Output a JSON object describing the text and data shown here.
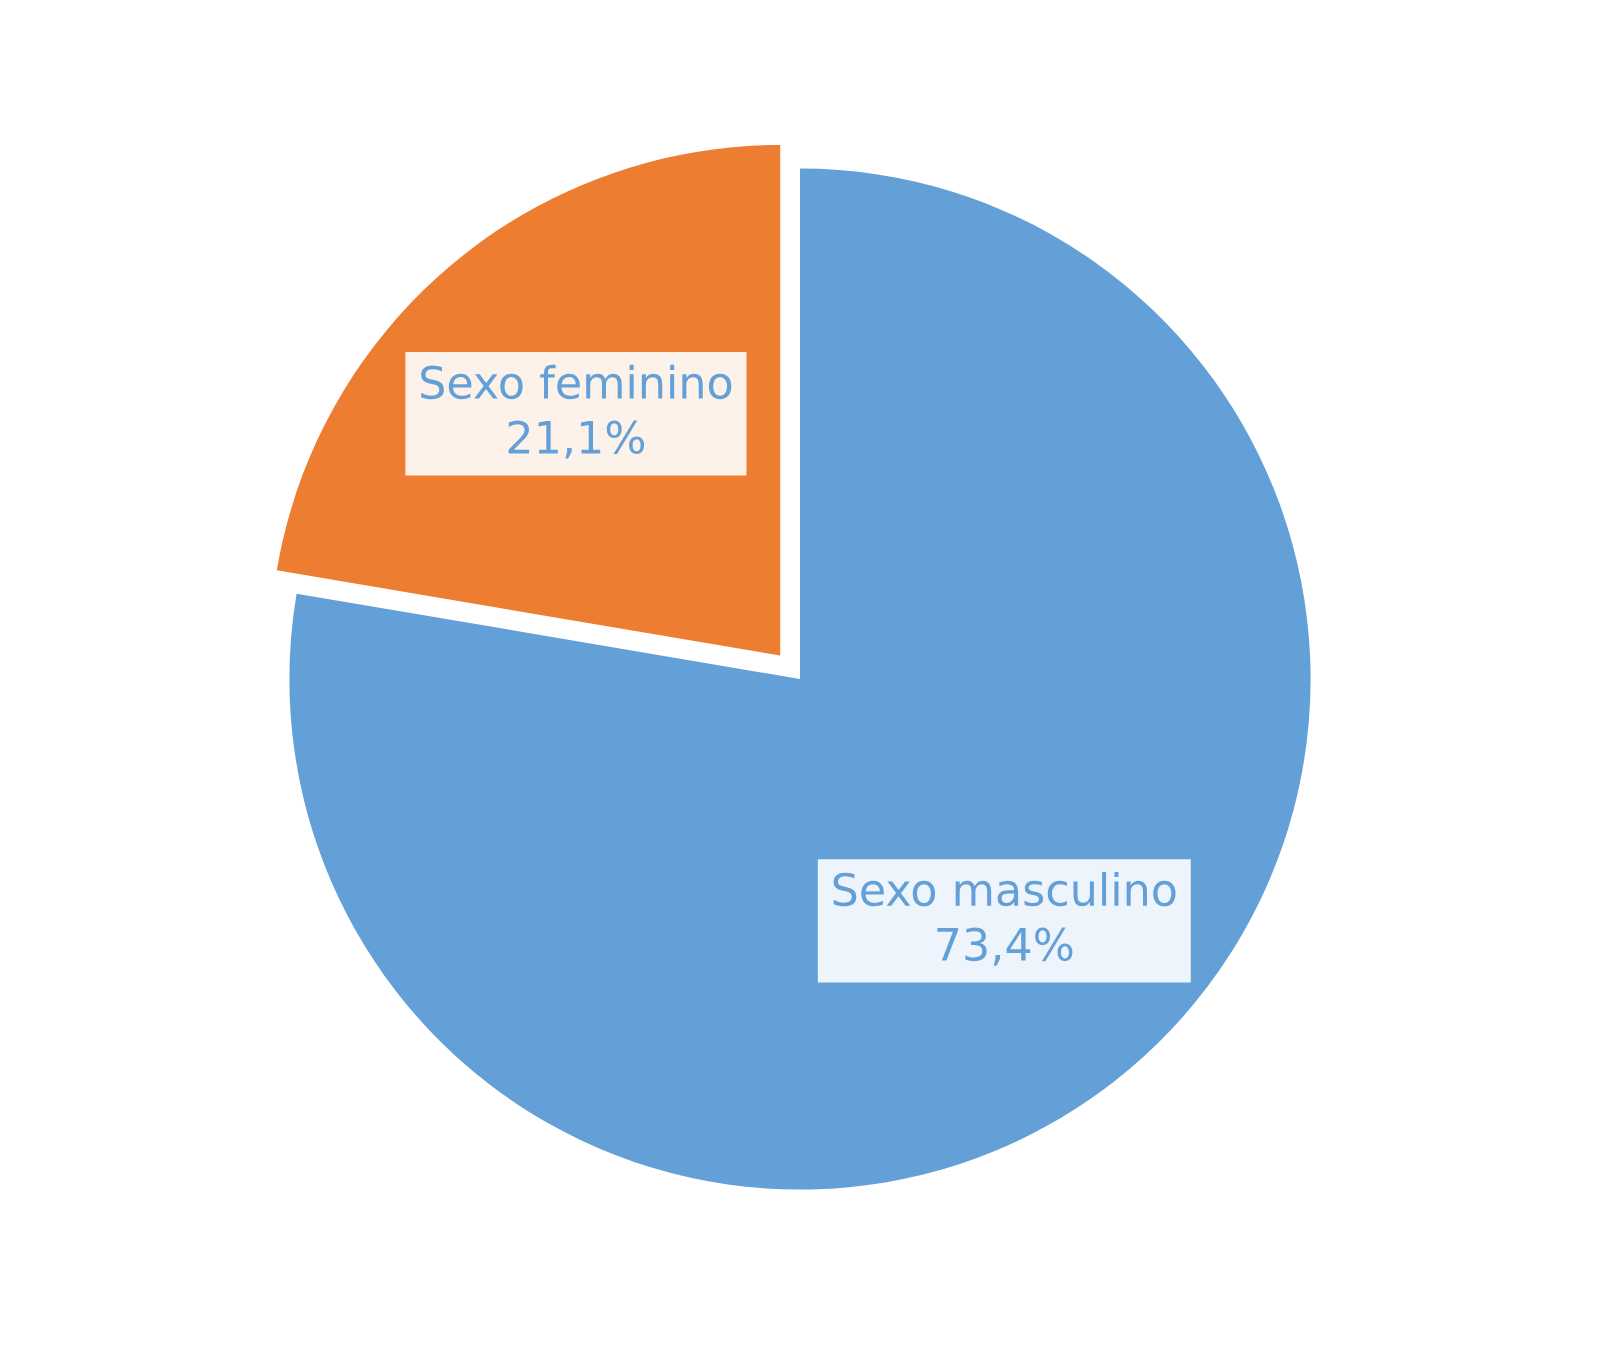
{
  "chart_data": {
    "type": "pie",
    "categories": [
      "Sexo masculino",
      "Sexo feminino"
    ],
    "values": [
      73.4,
      21.1
    ],
    "value_labels": [
      "73,4%",
      "21,1%"
    ],
    "colors": [
      "#64a0d8",
      "#ed7d31"
    ],
    "legend": false
  }
}
